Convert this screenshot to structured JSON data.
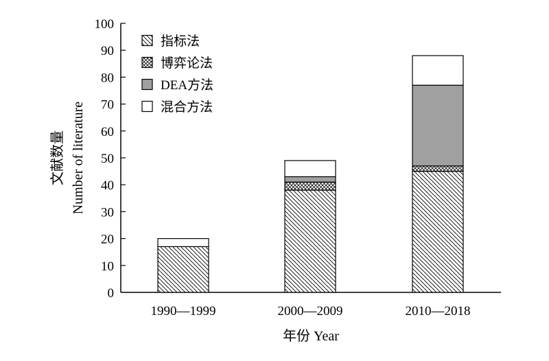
{
  "chart_data": {
    "type": "bar",
    "stacked": true,
    "categories": [
      "1990—1999",
      "2000—2009",
      "2010—2018"
    ],
    "series": [
      {
        "name": "指标法",
        "values": [
          17,
          38,
          45
        ],
        "fill": "hatch"
      },
      {
        "name": "博弈论法",
        "values": [
          0,
          3,
          2
        ],
        "fill": "crosshatch"
      },
      {
        "name": "DEA方法",
        "values": [
          0,
          2,
          30
        ],
        "fill": "#a0a0a0"
      },
      {
        "name": "混合方法",
        "values": [
          3,
          6,
          11
        ],
        "fill": "#ffffff"
      }
    ],
    "xlabel": "年份 Year",
    "ylabel_cn": "文献数量",
    "ylabel_en": "Number of literature",
    "ylim": [
      0,
      100
    ],
    "yticks": [
      0,
      10,
      20,
      30,
      40,
      50,
      60,
      70,
      80,
      90,
      100
    ],
    "legend_position": "top-left",
    "grid": false
  }
}
